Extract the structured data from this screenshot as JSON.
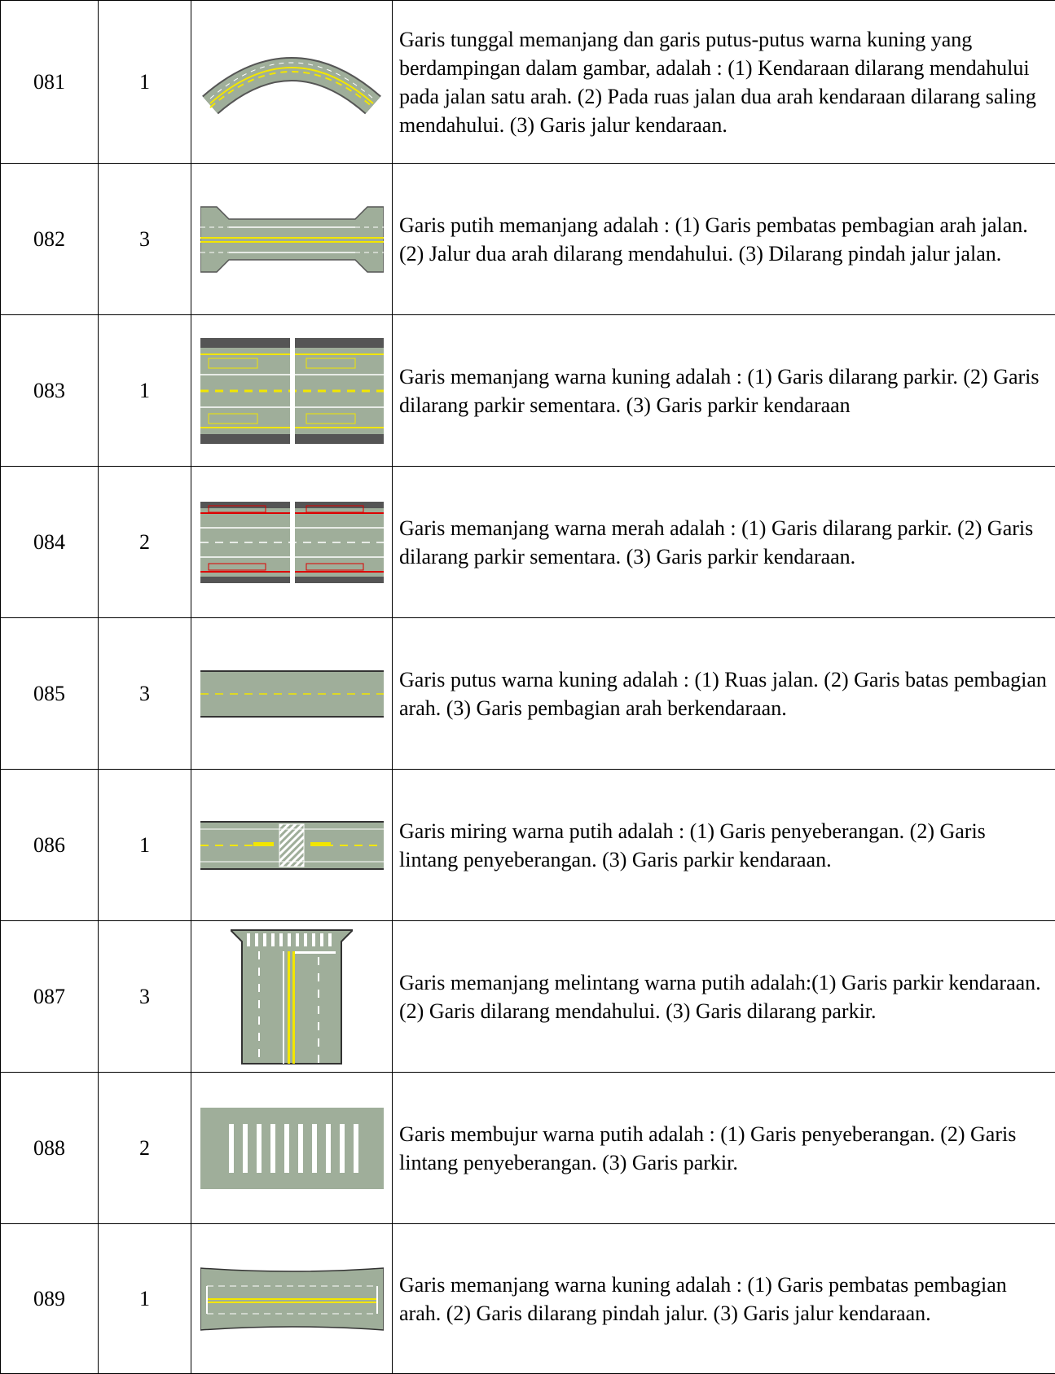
{
  "table": {
    "rows": [
      [
        "081",
        "1",
        "Garis tunggal memanjang dan garis putus-putus warna kuning yang berdampingan dalam gambar, adalah : (1) Kendaraan dilarang mendahului pada jalan satu arah.  (2) Pada ruas jalan dua arah kendaraan dilarang saling mendahului.  (3) Garis jalur kendaraan."
      ],
      [
        "082",
        "3",
        "Garis putih memanjang adalah : (1) Garis pembatas pembagian arah jalan.  (2) Jalur dua arah dilarang mendahului.  (3) Dilarang pindah jalur jalan."
      ],
      [
        "083",
        "1",
        "Garis memanjang warna kuning adalah : (1) Garis dilarang parkir.  (2) Garis dilarang parkir sementara.  (3) Garis parkir kendaraan"
      ],
      [
        "084",
        "2",
        "Garis memanjang warna merah adalah : (1) Garis dilarang parkir.  (2) Garis dilarang parkir sementara.  (3) Garis parkir kendaraan."
      ],
      [
        "085",
        "3",
        "Garis putus warna kuning adalah : (1) Ruas jalan. (2) Garis batas pembagian arah.  (3) Garis pembagian arah berkendaraan."
      ],
      [
        "086",
        "1",
        "Garis miring warna putih adalah : (1) Garis penyeberangan.  (2) Garis lintang penyeberangan.  (3) Garis parkir kendaraan."
      ],
      [
        "087",
        "3",
        "Garis memanjang melintang warna putih adalah:(1)  Garis parkir kendaraan.  (2) Garis dilarang mendahului.  (3) Garis dilarang parkir."
      ],
      [
        "088",
        "2",
        "Garis membujur warna putih adalah : (1) Garis penyeberangan.  (2) Garis lintang penyeberangan.  (3) Garis parkir."
      ],
      [
        "089",
        "1",
        "Garis memanjang warna kuning adalah : (1) Garis pembatas pembagian arah.  (2) Garis dilarang pindah jalur.  (3) Garis jalur kendaraan."
      ]
    ]
  }
}
